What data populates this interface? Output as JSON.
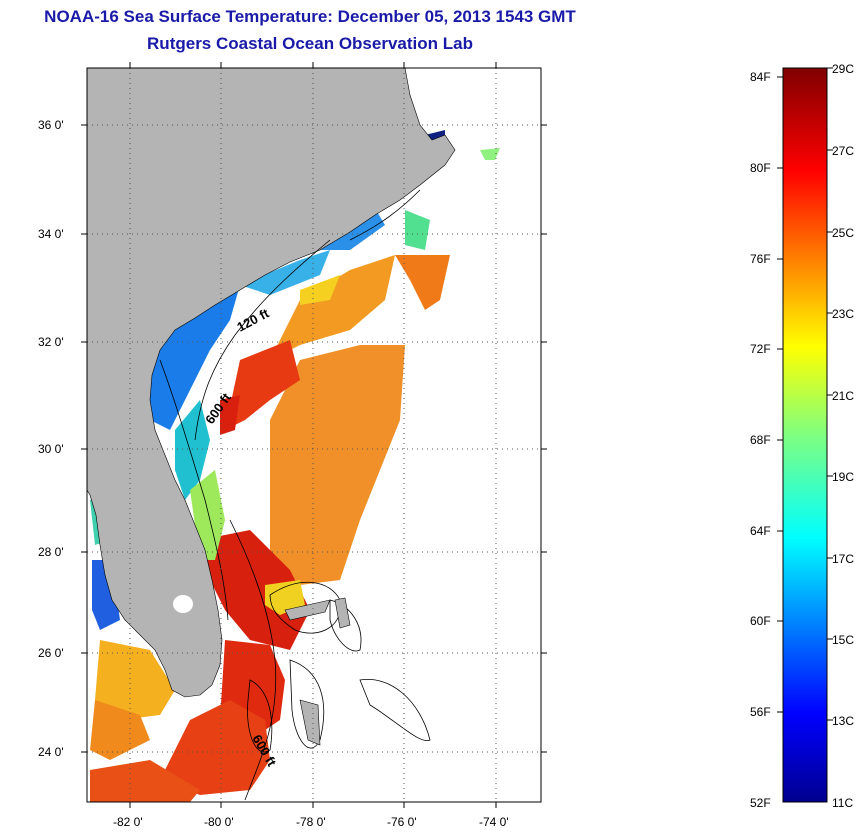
{
  "title": {
    "line1": "NOAA-16 Sea Surface Temperature:  December 05, 2013 1543 GMT",
    "line2": "Rutgers Coastal Ocean Observation Lab"
  },
  "map": {
    "lat_labels": [
      "36 0'",
      "34 0'",
      "32 0'",
      "30 0'",
      "28 0'",
      "26 0'",
      "24 0'"
    ],
    "lon_labels": [
      "-82 0'",
      "-80 0'",
      "-78 0'",
      "-76 0'",
      "-74 0'"
    ],
    "isobath_labels": [
      "120 ft",
      "600 ft",
      "600 ft"
    ],
    "colors": {
      "land": "#b4b4b4",
      "ocean_nodata": "#ffffff",
      "gridline": "#555555"
    }
  },
  "colorbar": {
    "fahrenheit_labels": [
      "84F",
      "80F",
      "76F",
      "72F",
      "68F",
      "64F",
      "60F",
      "56F",
      "52F"
    ],
    "celsius_labels": [
      "29C",
      "27C",
      "25C",
      "23C",
      "21C",
      "19C",
      "17C",
      "15C",
      "13C",
      "11C"
    ],
    "range_c": [
      11,
      29
    ],
    "colormap": "jet"
  }
}
